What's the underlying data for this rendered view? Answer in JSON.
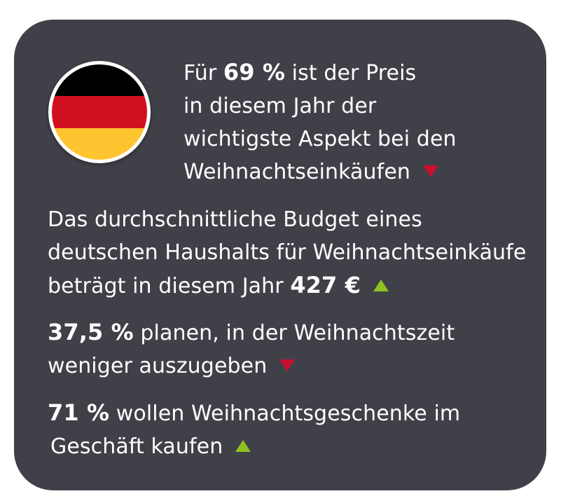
{
  "colors": {
    "card_background": "#404148",
    "text": "#ffffff",
    "arrow_down": "#c8102e",
    "arrow_up": "#8fc21f",
    "flag_black": "#000000",
    "flag_red": "#d0101f",
    "flag_gold": "#ffc530"
  },
  "flag": {
    "icon": "germany-flag-icon"
  },
  "stat1": {
    "line1_pre": "Für ",
    "value": "69 %",
    "line1_post": " ist der Preis",
    "line2": "in diesem Jahr der",
    "line3": "wichtigste Aspekt bei den",
    "line4": "Weihnachtseinkäufen",
    "trend": "down"
  },
  "stat2": {
    "line1": "Das durchschnittliche Budget eines",
    "line2": "deutschen Haushalts für Weihnachtseinkäufe",
    "line3_pre": "beträgt in diesem Jahr ",
    "value": "427 €",
    "trend": "up"
  },
  "stat3": {
    "value": "37,5 %",
    "line1_post": " planen, in der Weihnachtszeit",
    "line2": "weniger auszugeben",
    "trend": "down"
  },
  "stat4": {
    "value": "71 %",
    "line1_post": " wollen Weihnachtsgeschenke im",
    "line2": "Geschäft kaufen",
    "trend": "up"
  }
}
